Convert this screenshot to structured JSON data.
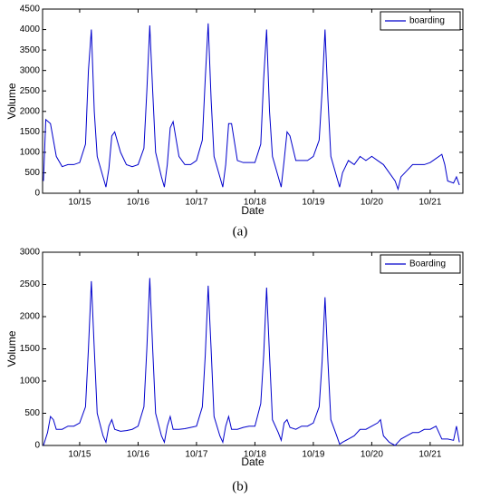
{
  "chart_data": [
    {
      "type": "line",
      "caption": "(a)",
      "xlabel": "Date",
      "ylabel": "Volume",
      "legend": "upper right",
      "grid": false,
      "xlim": [
        14.365,
        21.56
      ],
      "ylim": [
        0,
        4500
      ],
      "xticks": [
        {
          "value": 15,
          "label": "10/15"
        },
        {
          "value": 16,
          "label": "10/16"
        },
        {
          "value": 17,
          "label": "10/17"
        },
        {
          "value": 18,
          "label": "10/18"
        },
        {
          "value": 19,
          "label": "10/19"
        },
        {
          "value": 20,
          "label": "10/20"
        },
        {
          "value": 21,
          "label": "10/21"
        }
      ],
      "yticks": [
        0,
        500,
        1000,
        1500,
        2000,
        2500,
        3000,
        3500,
        4000,
        4500
      ],
      "x": [
        14.38,
        14.42,
        14.5,
        14.6,
        14.7,
        14.8,
        14.9,
        15.0,
        15.1,
        15.15,
        15.2,
        15.25,
        15.3,
        15.4,
        15.45,
        15.5,
        15.55,
        15.6,
        15.7,
        15.8,
        15.9,
        16.0,
        16.1,
        16.15,
        16.2,
        16.25,
        16.3,
        16.4,
        16.45,
        16.5,
        16.55,
        16.6,
        16.7,
        16.8,
        16.9,
        17.0,
        17.1,
        17.15,
        17.2,
        17.25,
        17.3,
        17.4,
        17.45,
        17.5,
        17.55,
        17.6,
        17.7,
        17.8,
        17.9,
        18.0,
        18.1,
        18.15,
        18.2,
        18.25,
        18.3,
        18.4,
        18.45,
        18.5,
        18.55,
        18.6,
        18.7,
        18.8,
        18.9,
        19.0,
        19.1,
        19.15,
        19.2,
        19.25,
        19.3,
        19.4,
        19.45,
        19.5,
        19.6,
        19.7,
        19.8,
        19.9,
        20.0,
        20.1,
        20.2,
        20.3,
        20.4,
        20.45,
        20.5,
        20.6,
        20.7,
        20.8,
        20.9,
        21.0,
        21.1,
        21.2,
        21.25,
        21.3,
        21.4,
        21.45,
        21.5
      ],
      "series": [
        {
          "name": "boarding",
          "color": "#0000cc",
          "values": [
            300,
            1800,
            1700,
            900,
            650,
            700,
            700,
            750,
            1200,
            3000,
            4000,
            2000,
            900,
            400,
            150,
            600,
            1400,
            1500,
            1000,
            700,
            650,
            700,
            1100,
            2500,
            4100,
            2500,
            1000,
            400,
            150,
            700,
            1600,
            1750,
            900,
            700,
            700,
            800,
            1300,
            2800,
            4150,
            2300,
            900,
            400,
            150,
            700,
            1700,
            1700,
            800,
            750,
            750,
            750,
            1200,
            2800,
            4000,
            2000,
            900,
            400,
            150,
            800,
            1500,
            1400,
            800,
            800,
            800,
            900,
            1300,
            2500,
            4000,
            2300,
            900,
            400,
            150,
            500,
            800,
            700,
            900,
            800,
            900,
            800,
            700,
            500,
            300,
            100,
            400,
            550,
            700,
            700,
            700,
            750,
            850,
            950,
            700,
            300,
            250,
            400,
            200
          ]
        }
      ]
    },
    {
      "type": "line",
      "caption": "(b)",
      "xlabel": "Date",
      "ylabel": "Volume",
      "legend": "upper right",
      "grid": false,
      "xlim": [
        14.365,
        21.56
      ],
      "ylim": [
        0,
        3000
      ],
      "xticks": [
        {
          "value": 15,
          "label": "10/15"
        },
        {
          "value": 16,
          "label": "10/16"
        },
        {
          "value": 17,
          "label": "10/17"
        },
        {
          "value": 18,
          "label": "10/18"
        },
        {
          "value": 19,
          "label": "10/19"
        },
        {
          "value": 20,
          "label": "10/20"
        },
        {
          "value": 21,
          "label": "10/21"
        }
      ],
      "yticks": [
        0,
        500,
        1000,
        1500,
        2000,
        2500,
        3000
      ],
      "x": [
        14.38,
        14.45,
        14.5,
        14.55,
        14.6,
        14.7,
        14.8,
        14.9,
        15.0,
        15.1,
        15.15,
        15.2,
        15.25,
        15.3,
        15.4,
        15.45,
        15.5,
        15.55,
        15.6,
        15.7,
        15.8,
        15.9,
        16.0,
        16.1,
        16.15,
        16.2,
        16.25,
        16.3,
        16.4,
        16.45,
        16.5,
        16.55,
        16.6,
        16.7,
        16.8,
        16.9,
        17.0,
        17.1,
        17.15,
        17.2,
        17.25,
        17.3,
        17.4,
        17.45,
        17.5,
        17.55,
        17.6,
        17.7,
        17.8,
        17.9,
        18.0,
        18.1,
        18.15,
        18.2,
        18.25,
        18.3,
        18.4,
        18.45,
        18.5,
        18.55,
        18.6,
        18.7,
        18.8,
        18.9,
        19.0,
        19.1,
        19.15,
        19.2,
        19.25,
        19.3,
        19.4,
        19.45,
        19.5,
        19.6,
        19.7,
        19.8,
        19.9,
        20.0,
        20.1,
        20.15,
        20.2,
        20.3,
        20.4,
        20.45,
        20.5,
        20.6,
        20.7,
        20.8,
        20.9,
        21.0,
        21.1,
        21.15,
        21.2,
        21.3,
        21.4,
        21.45,
        21.5
      ],
      "series": [
        {
          "name": "Boarding",
          "color": "#0000cc",
          "values": [
            0,
            200,
            450,
            400,
            250,
            250,
            300,
            300,
            350,
            600,
            1500,
            2550,
            1500,
            500,
            150,
            50,
            300,
            400,
            250,
            220,
            230,
            250,
            300,
            600,
            1500,
            2600,
            1500,
            500,
            150,
            50,
            300,
            450,
            250,
            250,
            260,
            280,
            300,
            600,
            1400,
            2480,
            1500,
            450,
            150,
            50,
            300,
            450,
            250,
            250,
            280,
            300,
            300,
            650,
            1400,
            2450,
            1400,
            400,
            200,
            80,
            350,
            400,
            280,
            250,
            300,
            300,
            350,
            600,
            1300,
            2300,
            1300,
            400,
            150,
            20,
            50,
            100,
            150,
            250,
            250,
            300,
            350,
            400,
            150,
            50,
            0,
            50,
            100,
            150,
            200,
            200,
            250,
            250,
            300,
            200,
            100,
            100,
            80,
            300,
            50
          ]
        }
      ]
    }
  ]
}
